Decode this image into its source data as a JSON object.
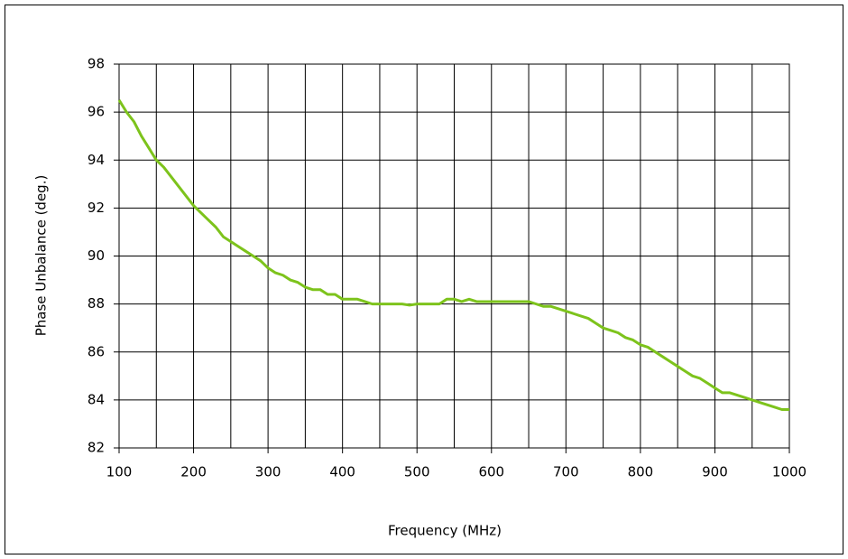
{
  "chart_data": {
    "type": "line",
    "xlabel": "Frequency (MHz)",
    "ylabel": "Phase Unbalance (deg.)",
    "x": [
      100,
      110,
      120,
      130,
      140,
      150,
      160,
      170,
      180,
      190,
      200,
      210,
      220,
      230,
      240,
      250,
      260,
      270,
      280,
      290,
      300,
      310,
      320,
      330,
      340,
      350,
      360,
      370,
      380,
      390,
      400,
      410,
      420,
      430,
      440,
      450,
      460,
      470,
      480,
      490,
      500,
      510,
      520,
      530,
      540,
      550,
      560,
      570,
      580,
      590,
      600,
      610,
      620,
      630,
      640,
      650,
      660,
      670,
      680,
      690,
      700,
      710,
      720,
      730,
      740,
      750,
      760,
      770,
      780,
      790,
      800,
      810,
      820,
      830,
      840,
      850,
      860,
      870,
      880,
      890,
      900,
      910,
      920,
      930,
      940,
      950,
      960,
      970,
      980,
      990,
      1000
    ],
    "values": [
      96.5,
      96.0,
      95.6,
      95.0,
      94.5,
      94.0,
      93.7,
      93.3,
      92.9,
      92.5,
      92.1,
      91.8,
      91.5,
      91.2,
      90.8,
      90.6,
      90.4,
      90.2,
      90.0,
      89.8,
      89.5,
      89.3,
      89.2,
      89.0,
      88.9,
      88.7,
      88.6,
      88.6,
      88.4,
      88.4,
      88.2,
      88.2,
      88.2,
      88.1,
      88.0,
      88.0,
      88.0,
      88.0,
      88.0,
      87.95,
      88.0,
      88.0,
      88.0,
      88.0,
      88.2,
      88.2,
      88.1,
      88.2,
      88.1,
      88.1,
      88.1,
      88.1,
      88.1,
      88.1,
      88.1,
      88.1,
      88.0,
      87.9,
      87.9,
      87.8,
      87.7,
      87.6,
      87.5,
      87.4,
      87.2,
      87.0,
      86.9,
      86.8,
      86.6,
      86.5,
      86.3,
      86.2,
      86.0,
      85.8,
      85.6,
      85.4,
      85.2,
      85.0,
      84.9,
      84.7,
      84.5,
      84.3,
      84.3,
      84.2,
      84.1,
      84.0,
      83.9,
      83.8,
      83.7,
      83.6,
      83.6
    ],
    "color": "#7dc31c",
    "xlim": [
      100,
      1000
    ],
    "xticks": [
      100,
      200,
      300,
      400,
      500,
      600,
      700,
      800,
      900,
      1000
    ],
    "xminorticks": [
      150,
      250,
      350,
      450,
      550,
      650,
      750,
      850,
      950
    ],
    "ylim": [
      82,
      98
    ],
    "yticks": [
      82,
      84,
      86,
      88,
      90,
      92,
      94,
      96,
      98
    ],
    "grid": true
  }
}
